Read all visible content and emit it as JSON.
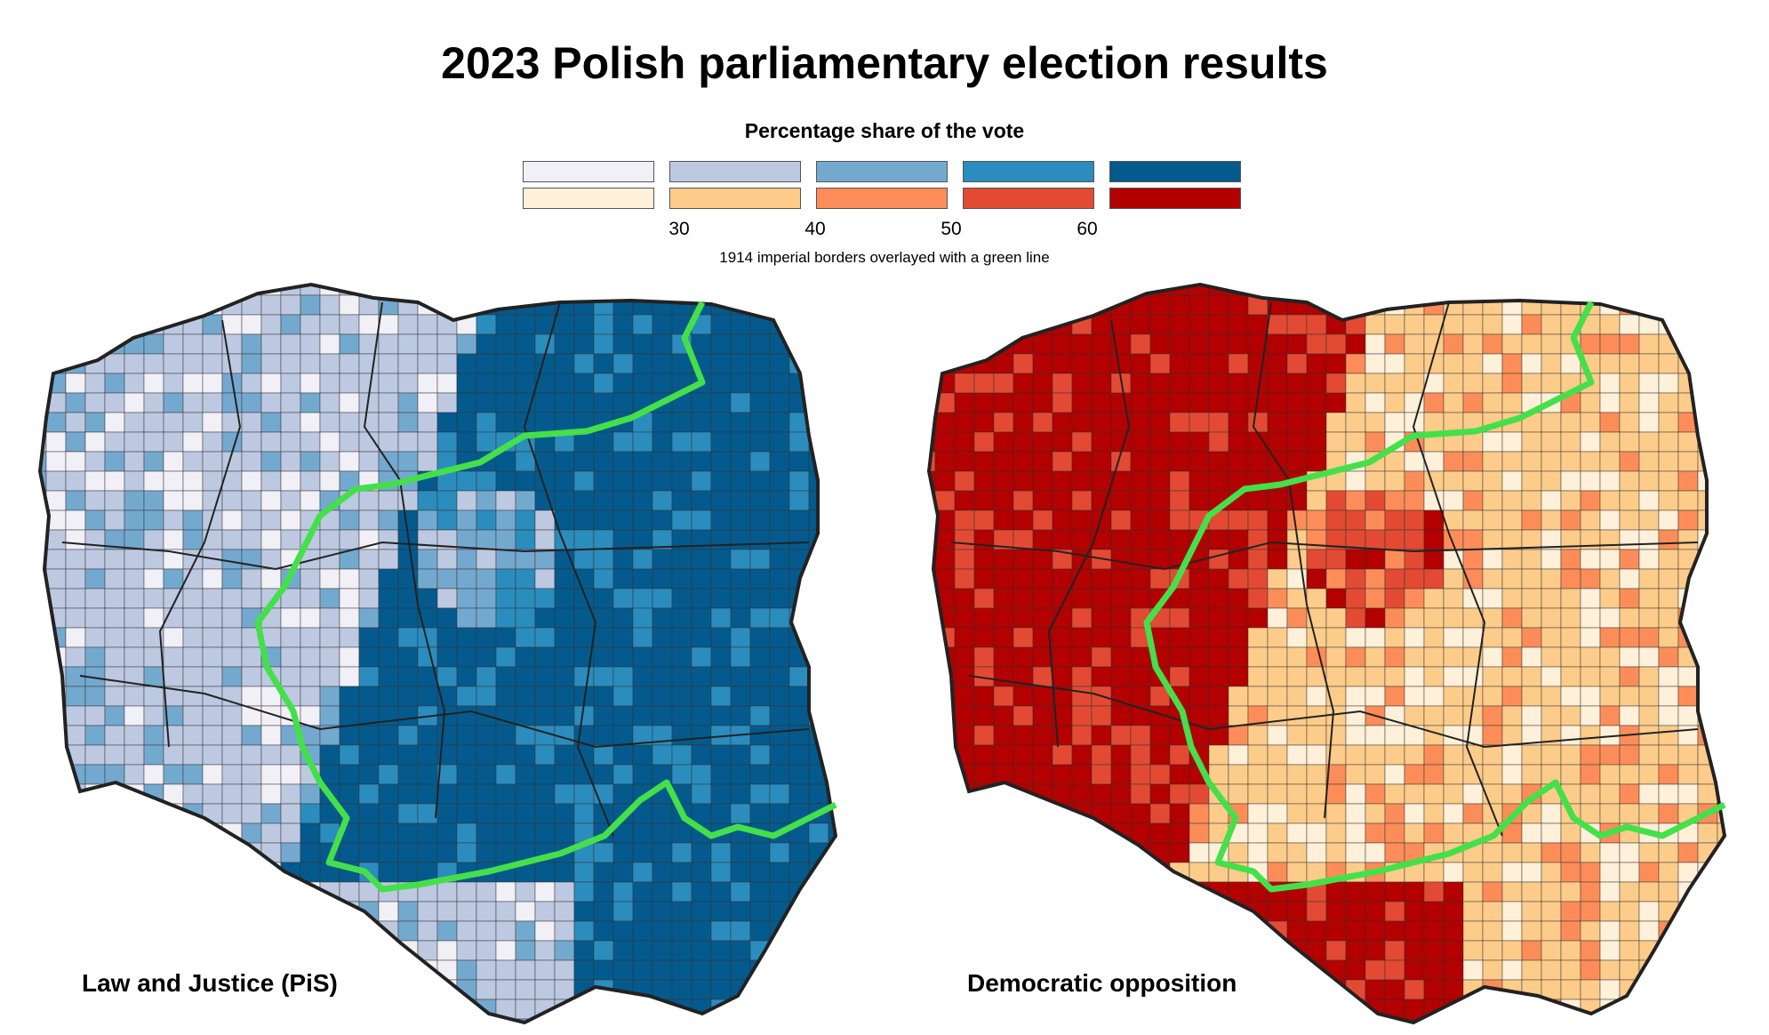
{
  "title": "2023 Polish parliamentary election results",
  "legend": {
    "title": "Percentage share of the vote",
    "pis_colors": [
      "#f2f0f7",
      "#bdc9e1",
      "#74a9cf",
      "#2b8cbe",
      "#045a8d"
    ],
    "opposition_colors": [
      "#fef0d9",
      "#fdcc8a",
      "#fc8d59",
      "#e34a33",
      "#b30000"
    ],
    "ticks": [
      "30",
      "40",
      "50",
      "60"
    ]
  },
  "note": "1914 imperial borders overlayed with a green line",
  "maps": [
    {
      "label": "Law and Justice (PiS)",
      "scheme": "pis",
      "west_class": 1,
      "east_class": 4,
      "center_class": 2
    },
    {
      "label": "Democratic opposition",
      "scheme": "opposition",
      "west_class": 4,
      "east_class": 1,
      "center_class": 3
    }
  ],
  "border_color": "#44e04a"
}
